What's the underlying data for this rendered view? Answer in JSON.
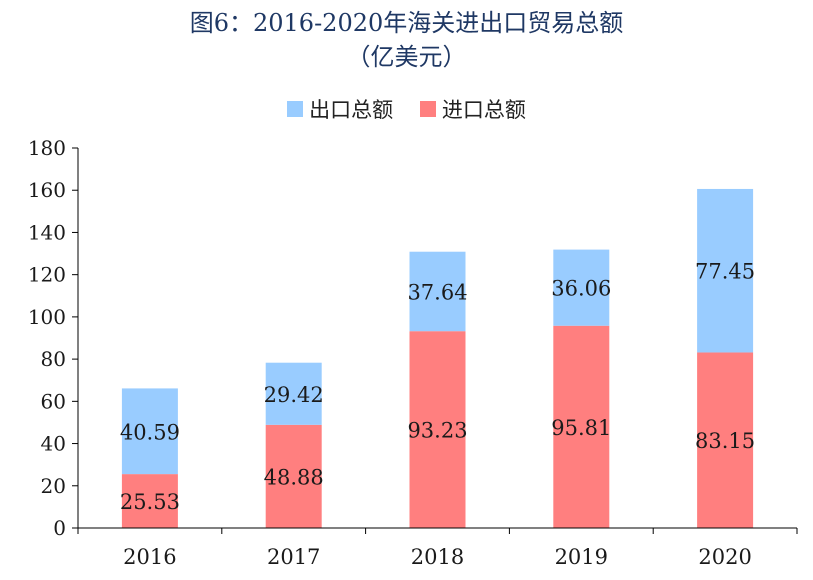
{
  "chart_data": {
    "type": "bar",
    "stacked": true,
    "title": "图6：2016-2020年海关进出口贸易总额",
    "subtitle": "（亿美元）",
    "categories": [
      "2016",
      "2017",
      "2018",
      "2019",
      "2020"
    ],
    "series": [
      {
        "name": "进口总额",
        "color": "#ff7f7f",
        "values": [
          25.53,
          48.88,
          93.23,
          95.81,
          83.15
        ]
      },
      {
        "name": "出口总额",
        "color": "#99ccff",
        "values": [
          40.59,
          29.42,
          37.64,
          36.06,
          77.45
        ]
      }
    ],
    "legend_order": [
      "出口总额",
      "进口总额"
    ],
    "legend_position": "top",
    "ylim": [
      0,
      180
    ],
    "yticks": [
      "0",
      "20",
      "40",
      "60",
      "80",
      "100",
      "120",
      "140",
      "160",
      "180"
    ],
    "data_labels": true,
    "grid": false
  }
}
